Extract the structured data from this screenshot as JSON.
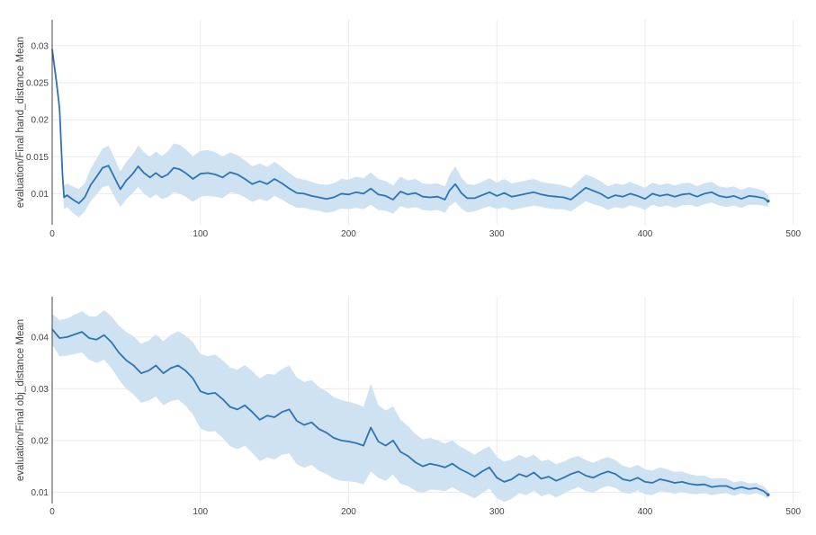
{
  "chart_data": [
    {
      "type": "line",
      "title": "",
      "xlabel": "",
      "ylabel": "evaluation/Final hand_distance Mean",
      "xlim": [
        0,
        505
      ],
      "ylim": [
        0.0058,
        0.0335
      ],
      "xticks": [
        0,
        100,
        200,
        300,
        400,
        500
      ],
      "yticks": [
        0.01,
        0.015,
        0.02,
        0.025,
        0.03
      ],
      "ytick_labels": [
        "0.01",
        "0.015",
        "0.02",
        "0.025",
        "0.03"
      ],
      "grid": true,
      "line_color": "#2e74b5",
      "band_color": "#cfe2f1",
      "series": [
        {
          "x": [
            0,
            3,
            5,
            7,
            8,
            10,
            14,
            18,
            22,
            26,
            30,
            34,
            38,
            42,
            46,
            50,
            54,
            58,
            62,
            66,
            70,
            74,
            78,
            82,
            86,
            90,
            95,
            100,
            105,
            110,
            115,
            120,
            125,
            130,
            135,
            140,
            145,
            150,
            155,
            160,
            165,
            170,
            175,
            180,
            185,
            190,
            195,
            200,
            205,
            210,
            215,
            220,
            225,
            230,
            235,
            240,
            245,
            250,
            255,
            260,
            265,
            268,
            272,
            276,
            280,
            285,
            290,
            295,
            300,
            305,
            310,
            315,
            320,
            325,
            330,
            335,
            340,
            345,
            350,
            355,
            360,
            365,
            370,
            375,
            380,
            385,
            390,
            395,
            400,
            405,
            410,
            415,
            420,
            425,
            430,
            435,
            440,
            445,
            450,
            455,
            460,
            465,
            470,
            475,
            480,
            483
          ],
          "y": [
            0.0295,
            0.025,
            0.0215,
            0.0125,
            0.0095,
            0.0098,
            0.0092,
            0.0087,
            0.0095,
            0.0112,
            0.0123,
            0.0135,
            0.0138,
            0.0122,
            0.0106,
            0.0118,
            0.0126,
            0.0137,
            0.0128,
            0.0122,
            0.0128,
            0.0122,
            0.0126,
            0.0135,
            0.0133,
            0.0128,
            0.012,
            0.0127,
            0.0128,
            0.0126,
            0.0122,
            0.0129,
            0.0126,
            0.012,
            0.0113,
            0.0117,
            0.0113,
            0.012,
            0.0114,
            0.0107,
            0.0101,
            0.01,
            0.0097,
            0.0095,
            0.0093,
            0.0095,
            0.01,
            0.0099,
            0.0102,
            0.01,
            0.0107,
            0.0099,
            0.0097,
            0.0092,
            0.0103,
            0.0099,
            0.0101,
            0.0096,
            0.0095,
            0.0096,
            0.0092,
            0.0104,
            0.0113,
            0.0101,
            0.0094,
            0.0094,
            0.0098,
            0.0102,
            0.0097,
            0.0101,
            0.0096,
            0.0098,
            0.01,
            0.0102,
            0.0099,
            0.0097,
            0.0096,
            0.0095,
            0.0092,
            0.01,
            0.0108,
            0.0104,
            0.01,
            0.0094,
            0.0098,
            0.0096,
            0.01,
            0.0097,
            0.0093,
            0.01,
            0.0097,
            0.0099,
            0.0096,
            0.0099,
            0.01,
            0.0096,
            0.01,
            0.0102,
            0.0097,
            0.0095,
            0.0097,
            0.0093,
            0.0097,
            0.0096,
            0.0094,
            0.009
          ],
          "band": [
            0.0008,
            0.0008,
            0.001,
            0.0014,
            0.0016,
            0.0016,
            0.0018,
            0.0019,
            0.0019,
            0.0022,
            0.0024,
            0.0026,
            0.0027,
            0.0026,
            0.0024,
            0.0025,
            0.0026,
            0.0028,
            0.0028,
            0.0028,
            0.0029,
            0.0029,
            0.0031,
            0.0033,
            0.0033,
            0.0032,
            0.0031,
            0.0031,
            0.0031,
            0.003,
            0.0028,
            0.0027,
            0.0026,
            0.0025,
            0.0024,
            0.0024,
            0.0023,
            0.0023,
            0.0022,
            0.0021,
            0.002,
            0.0019,
            0.0019,
            0.0018,
            0.0019,
            0.0019,
            0.002,
            0.002,
            0.0021,
            0.0021,
            0.0022,
            0.0021,
            0.002,
            0.0019,
            0.002,
            0.0019,
            0.0019,
            0.0018,
            0.0018,
            0.0018,
            0.0018,
            0.0021,
            0.0024,
            0.0021,
            0.0019,
            0.0018,
            0.0018,
            0.0019,
            0.0018,
            0.0019,
            0.0018,
            0.0018,
            0.0018,
            0.0018,
            0.0017,
            0.0017,
            0.0017,
            0.0016,
            0.0016,
            0.0017,
            0.0018,
            0.0018,
            0.0017,
            0.0016,
            0.0016,
            0.0016,
            0.0016,
            0.0015,
            0.0015,
            0.0015,
            0.0015,
            0.0015,
            0.0015,
            0.0015,
            0.0015,
            0.0014,
            0.0014,
            0.0014,
            0.0013,
            0.0013,
            0.0013,
            0.0012,
            0.0012,
            0.0011,
            0.001,
            0.0008
          ]
        }
      ]
    },
    {
      "type": "line",
      "title": "",
      "xlabel": "",
      "ylabel": "evaluation/Final obj_distance Mean",
      "xlim": [
        0,
        505
      ],
      "ylim": [
        0.0078,
        0.0478
      ],
      "xticks": [
        0,
        100,
        200,
        300,
        400,
        500
      ],
      "yticks": [
        0.01,
        0.02,
        0.03,
        0.04
      ],
      "ytick_labels": [
        "0.01",
        "0.02",
        "0.03",
        "0.04"
      ],
      "grid": true,
      "line_color": "#2e74b5",
      "band_color": "#cfe2f1",
      "series": [
        {
          "x": [
            0,
            5,
            10,
            15,
            20,
            25,
            30,
            35,
            40,
            45,
            50,
            55,
            60,
            65,
            70,
            75,
            80,
            85,
            90,
            95,
            100,
            105,
            110,
            115,
            120,
            125,
            130,
            135,
            140,
            145,
            150,
            155,
            160,
            165,
            170,
            175,
            180,
            185,
            190,
            195,
            200,
            205,
            210,
            215,
            220,
            225,
            230,
            235,
            240,
            245,
            250,
            255,
            260,
            265,
            270,
            275,
            280,
            285,
            290,
            295,
            300,
            305,
            310,
            315,
            320,
            325,
            330,
            335,
            340,
            345,
            350,
            355,
            360,
            365,
            370,
            375,
            380,
            385,
            390,
            395,
            400,
            405,
            410,
            415,
            420,
            425,
            430,
            435,
            440,
            445,
            450,
            455,
            460,
            465,
            470,
            475,
            480,
            483
          ],
          "y": [
            0.0415,
            0.0398,
            0.04,
            0.0405,
            0.041,
            0.0398,
            0.0395,
            0.0404,
            0.039,
            0.037,
            0.0355,
            0.0345,
            0.033,
            0.0335,
            0.0345,
            0.033,
            0.034,
            0.0345,
            0.0335,
            0.032,
            0.0295,
            0.029,
            0.0292,
            0.028,
            0.0265,
            0.026,
            0.0268,
            0.0255,
            0.024,
            0.0248,
            0.0245,
            0.0255,
            0.026,
            0.0238,
            0.023,
            0.0235,
            0.0222,
            0.0215,
            0.0205,
            0.02,
            0.0198,
            0.0195,
            0.019,
            0.0225,
            0.0198,
            0.019,
            0.02,
            0.0178,
            0.017,
            0.0158,
            0.015,
            0.0155,
            0.0152,
            0.0148,
            0.0155,
            0.0145,
            0.0138,
            0.013,
            0.014,
            0.0148,
            0.0128,
            0.012,
            0.0125,
            0.0135,
            0.013,
            0.0138,
            0.0126,
            0.013,
            0.0122,
            0.0128,
            0.0135,
            0.014,
            0.0132,
            0.0128,
            0.0135,
            0.014,
            0.0135,
            0.0125,
            0.0122,
            0.0128,
            0.012,
            0.0118,
            0.0125,
            0.0122,
            0.0118,
            0.012,
            0.0116,
            0.0114,
            0.0115,
            0.011,
            0.0112,
            0.0112,
            0.0106,
            0.011,
            0.0106,
            0.0108,
            0.0102,
            0.0095
          ],
          "band": [
            0.003,
            0.0035,
            0.0036,
            0.0038,
            0.004,
            0.0042,
            0.0045,
            0.0048,
            0.005,
            0.0052,
            0.0055,
            0.0056,
            0.0057,
            0.0058,
            0.006,
            0.0062,
            0.0064,
            0.0066,
            0.0068,
            0.007,
            0.0072,
            0.0073,
            0.0074,
            0.0075,
            0.0076,
            0.0077,
            0.0078,
            0.0079,
            0.008,
            0.0081,
            0.0082,
            0.0083,
            0.0085,
            0.0084,
            0.0083,
            0.0082,
            0.0081,
            0.008,
            0.0079,
            0.0078,
            0.0077,
            0.0076,
            0.0075,
            0.0085,
            0.007,
            0.0068,
            0.0066,
            0.0062,
            0.0058,
            0.0055,
            0.0052,
            0.005,
            0.0048,
            0.0046,
            0.0045,
            0.0044,
            0.0043,
            0.0042,
            0.0042,
            0.0041,
            0.004,
            0.0039,
            0.0038,
            0.0037,
            0.0036,
            0.0035,
            0.0034,
            0.0033,
            0.0032,
            0.0031,
            0.0031,
            0.003,
            0.003,
            0.0029,
            0.0028,
            0.0028,
            0.0027,
            0.0026,
            0.0025,
            0.0025,
            0.0024,
            0.0024,
            0.0023,
            0.0022,
            0.0021,
            0.002,
            0.0019,
            0.0018,
            0.0017,
            0.0016,
            0.0015,
            0.0014,
            0.0013,
            0.0012,
            0.0011,
            0.001,
            0.0009,
            0.0008
          ]
        }
      ]
    }
  ]
}
